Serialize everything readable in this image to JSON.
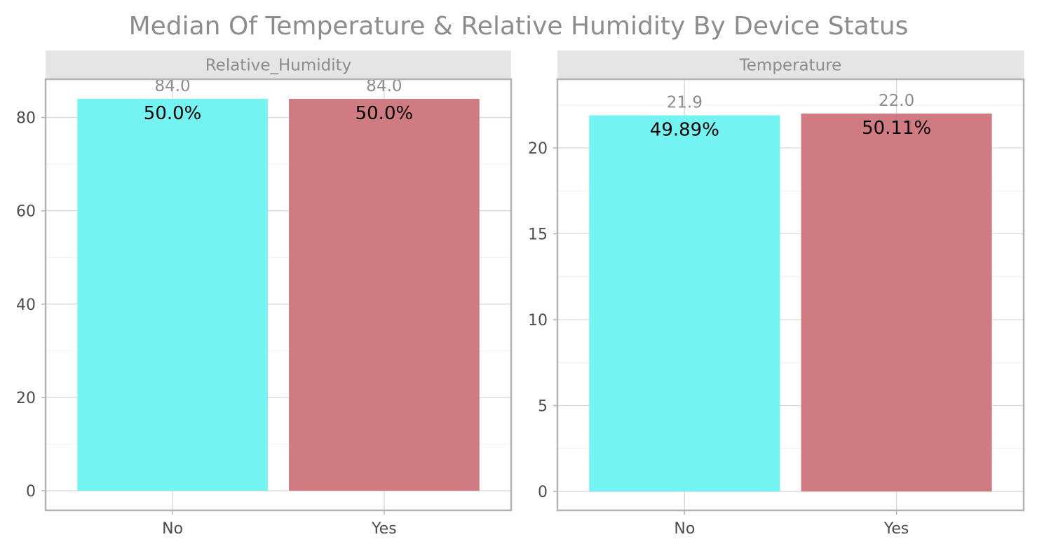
{
  "chart_data": {
    "type": "bar",
    "title": "Median Of Temperature & Relative Humidity By Device Status",
    "colors": {
      "No": "#73f4f2",
      "Yes": "#d07b81"
    },
    "grid": true,
    "facets": [
      {
        "name": "Relative_Humidity",
        "categories": [
          "No",
          "Yes"
        ],
        "values": [
          84.0,
          84.0
        ],
        "value_labels": [
          "84.0",
          "84.0"
        ],
        "pct_labels": [
          "50.0%",
          "50.0%"
        ],
        "ylim": [
          -4.2,
          88.2
        ],
        "yticks": [
          0,
          20,
          40,
          60,
          80
        ],
        "yticklabels": [
          "0",
          "20",
          "40",
          "60",
          "80"
        ]
      },
      {
        "name": "Temperature",
        "categories": [
          "No",
          "Yes"
        ],
        "values": [
          21.9,
          22.0
        ],
        "value_labels": [
          "21.9",
          "22.0"
        ],
        "pct_labels": [
          "49.89%",
          "50.11%"
        ],
        "ylim": [
          -1.1,
          24.0
        ],
        "yticks": [
          0,
          5,
          10,
          15,
          20
        ],
        "yticklabels": [
          "0",
          "5",
          "10",
          "15",
          "20"
        ]
      }
    ]
  }
}
